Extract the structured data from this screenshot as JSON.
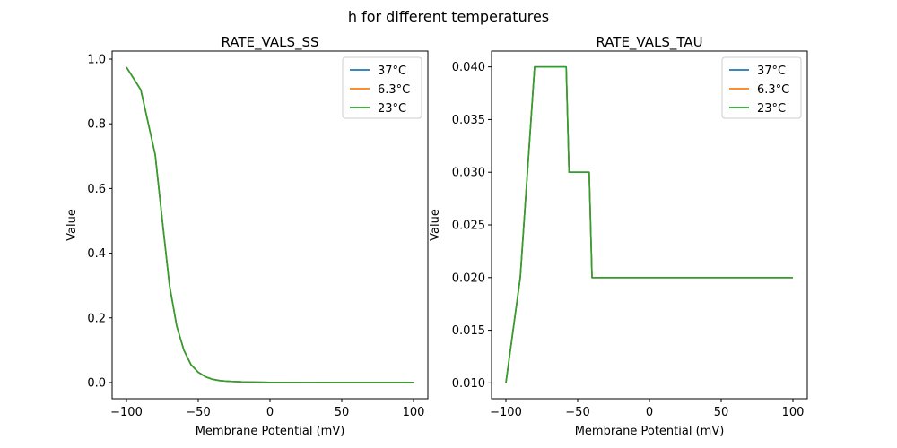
{
  "figure": {
    "suptitle": "h for different temperatures"
  },
  "chart_data": [
    {
      "type": "line",
      "title": "RATE_VALS_SS",
      "xlabel": "Membrane Potential (mV)",
      "ylabel": "Value",
      "xlim": [
        -110,
        110
      ],
      "ylim": [
        -0.05,
        1.025
      ],
      "xticks": [
        -100,
        -50,
        0,
        50,
        100
      ],
      "xtick_labels": [
        "−100",
        "−50",
        "0",
        "50",
        "100"
      ],
      "yticks": [
        0.0,
        0.2,
        0.4,
        0.6,
        0.8,
        1.0
      ],
      "ytick_labels": [
        "0.0",
        "0.2",
        "0.4",
        "0.6",
        "0.8",
        "1.0"
      ],
      "grid": false,
      "legend": "top-right",
      "x": [
        -100,
        -90,
        -80,
        -75,
        -70,
        -65,
        -60,
        -55,
        -50,
        -45,
        -40,
        -35,
        -30,
        -25,
        -20,
        -10,
        0,
        25,
        50,
        75,
        100
      ],
      "series": [
        {
          "name": "37°C",
          "color": "#1f77b4",
          "values": [
            0.975,
            0.905,
            0.705,
            0.5,
            0.3,
            0.175,
            0.1,
            0.055,
            0.032,
            0.018,
            0.01,
            0.006,
            0.004,
            0.003,
            0.002,
            0.001,
            0.0005,
            0.0002,
            0.0001,
            0.0,
            0.0
          ]
        },
        {
          "name": "6.3°C",
          "color": "#ff7f0e",
          "values": [
            0.975,
            0.905,
            0.705,
            0.5,
            0.3,
            0.175,
            0.1,
            0.055,
            0.032,
            0.018,
            0.01,
            0.006,
            0.004,
            0.003,
            0.002,
            0.001,
            0.0005,
            0.0002,
            0.0001,
            0.0,
            0.0
          ]
        },
        {
          "name": "23°C",
          "color": "#2ca02c",
          "values": [
            0.975,
            0.905,
            0.705,
            0.5,
            0.3,
            0.175,
            0.1,
            0.055,
            0.032,
            0.018,
            0.01,
            0.006,
            0.004,
            0.003,
            0.002,
            0.001,
            0.0005,
            0.0002,
            0.0001,
            0.0,
            0.0
          ]
        }
      ]
    },
    {
      "type": "line",
      "title": "RATE_VALS_TAU",
      "xlabel": "Membrane Potential (mV)",
      "ylabel": "Value",
      "xlim": [
        -110,
        110
      ],
      "ylim": [
        0.0085,
        0.0415
      ],
      "xticks": [
        -100,
        -50,
        0,
        50,
        100
      ],
      "xtick_labels": [
        "−100",
        "−50",
        "0",
        "50",
        "100"
      ],
      "yticks": [
        0.01,
        0.015,
        0.02,
        0.025,
        0.03,
        0.035,
        0.04
      ],
      "ytick_labels": [
        "0.010",
        "0.015",
        "0.020",
        "0.025",
        "0.030",
        "0.035",
        "0.040"
      ],
      "grid": false,
      "legend": "top-right",
      "x": [
        -100,
        -90,
        -80,
        -58,
        -56,
        -42,
        -40,
        100
      ],
      "series": [
        {
          "name": "37°C",
          "color": "#1f77b4",
          "values": [
            0.01,
            0.02,
            0.04,
            0.04,
            0.03,
            0.03,
            0.02,
            0.02
          ]
        },
        {
          "name": "6.3°C",
          "color": "#ff7f0e",
          "values": [
            0.01,
            0.02,
            0.04,
            0.04,
            0.03,
            0.03,
            0.02,
            0.02
          ]
        },
        {
          "name": "23°C",
          "color": "#2ca02c",
          "values": [
            0.01,
            0.02,
            0.04,
            0.04,
            0.03,
            0.03,
            0.02,
            0.02
          ]
        }
      ]
    }
  ]
}
